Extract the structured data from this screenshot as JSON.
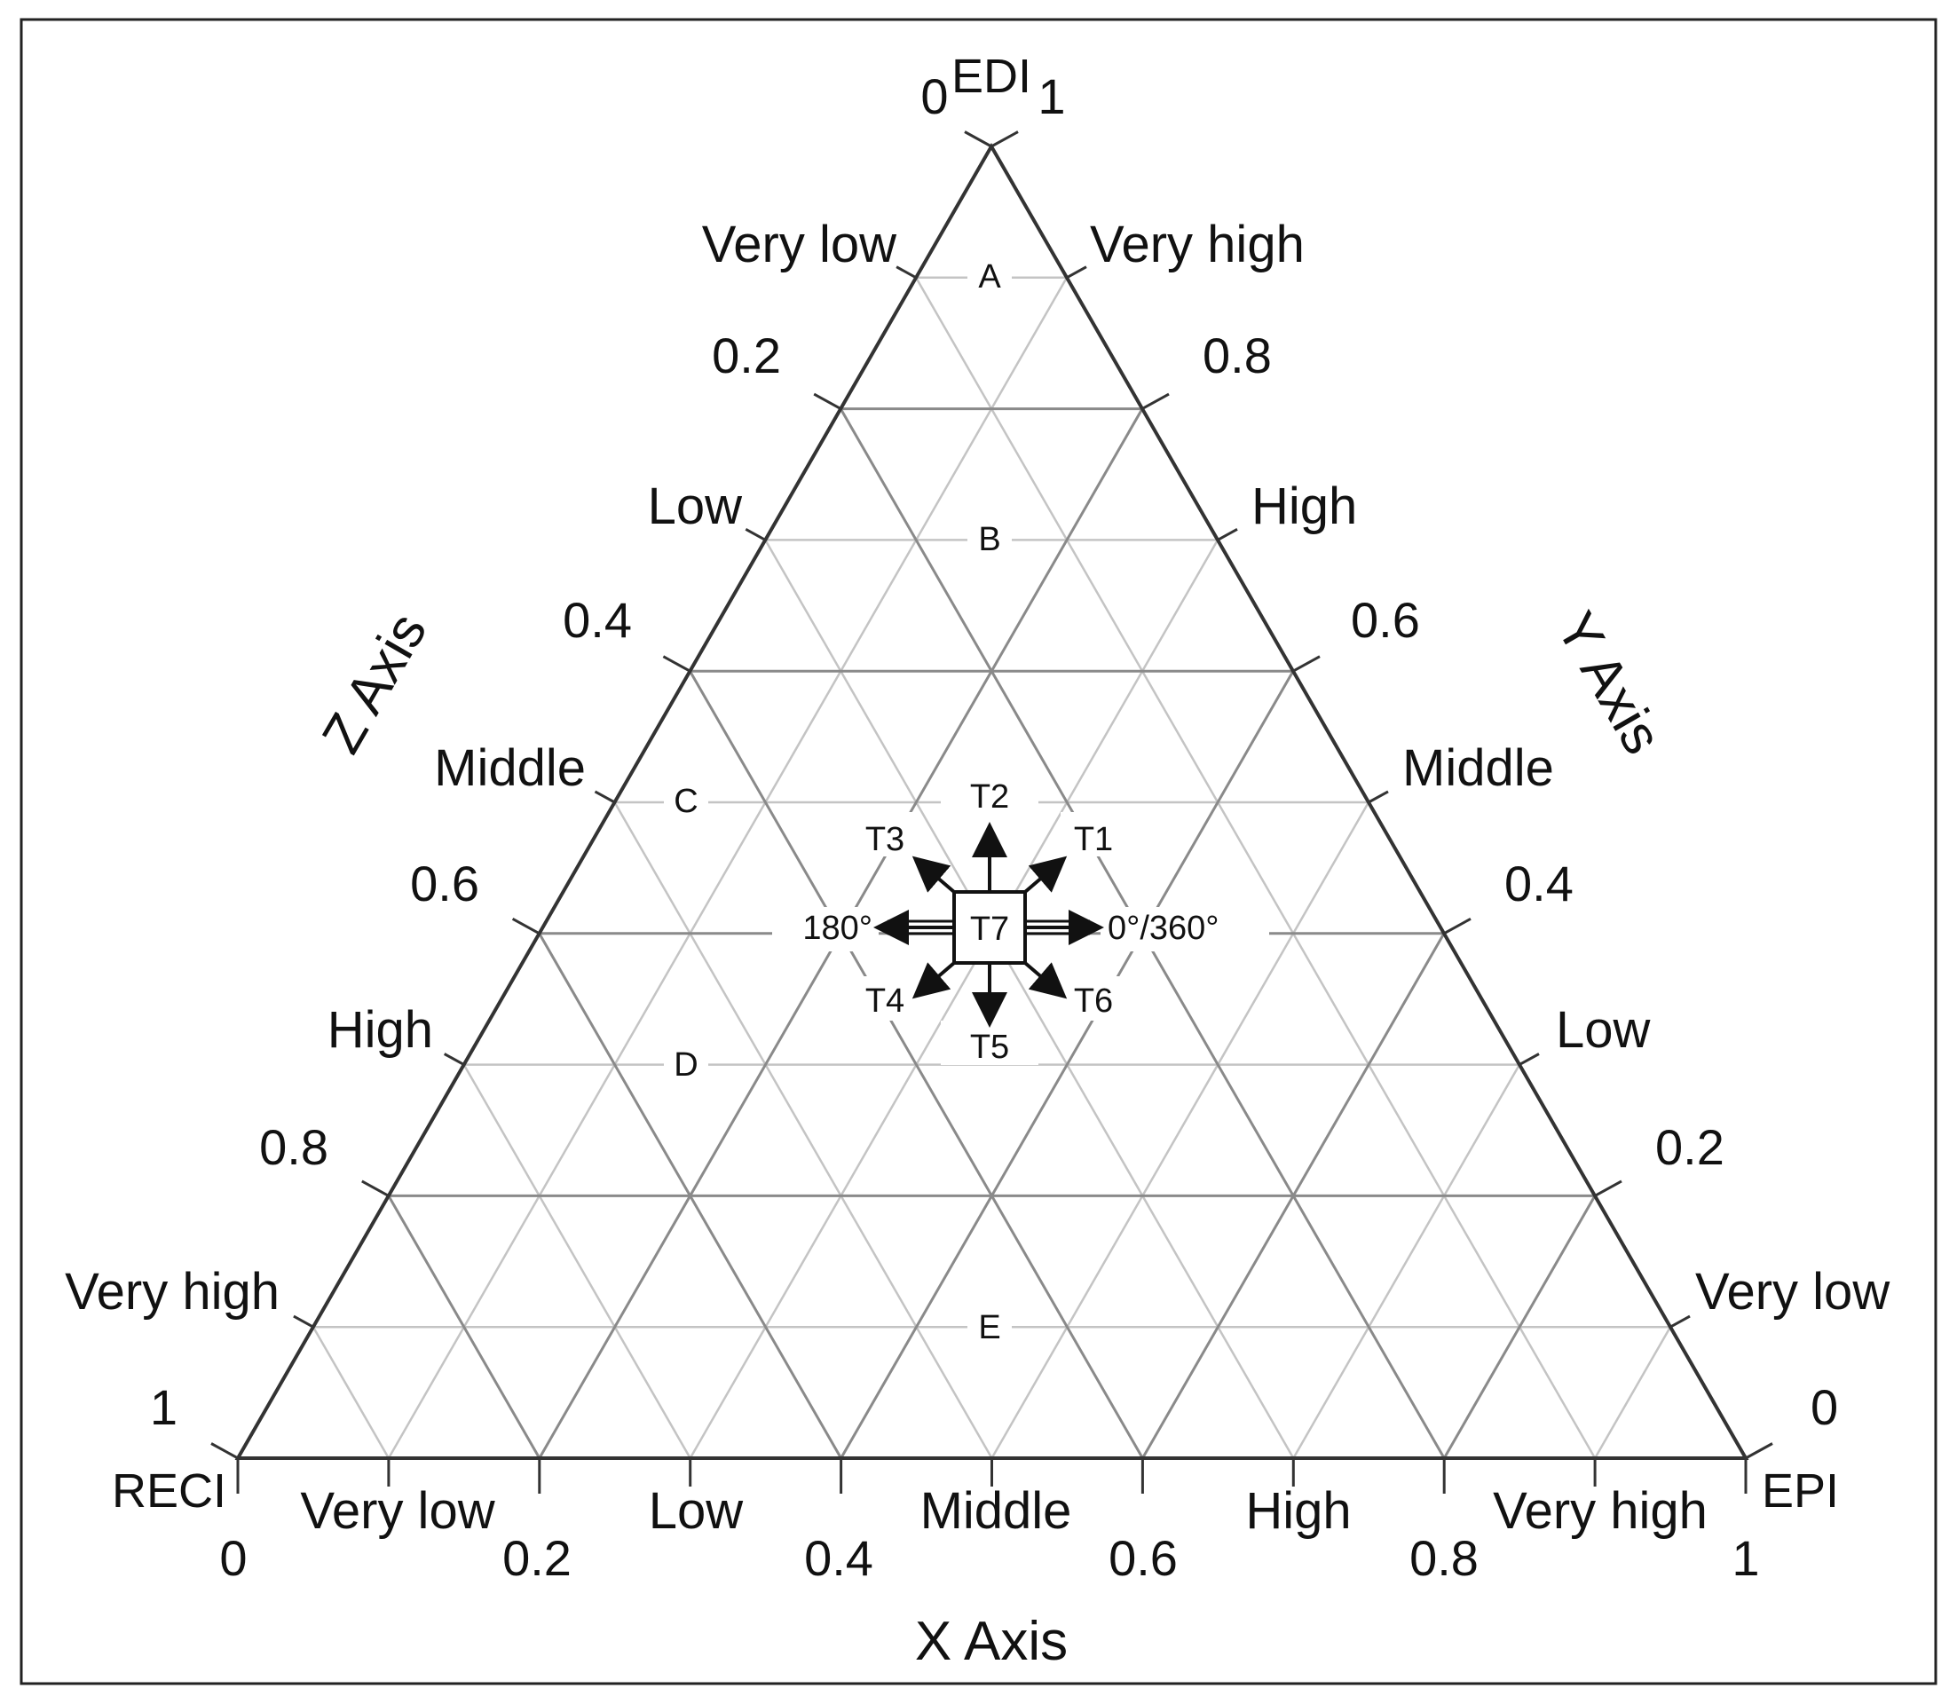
{
  "corners": {
    "top": "EDI",
    "left": "RECI",
    "right": "EPI"
  },
  "axes": {
    "x": {
      "title": "X Axis",
      "ticks": [
        "0",
        "0.2",
        "0.4",
        "0.6",
        "0.8",
        "1"
      ],
      "classes": [
        "Very low",
        "Low",
        "Middle",
        "High",
        "Very high"
      ]
    },
    "y": {
      "title": "Y Axis",
      "ticks": [
        "1",
        "0.8",
        "0.6",
        "0.4",
        "0.2",
        "0"
      ],
      "classes": [
        "Very high",
        "High",
        "Middle",
        "Low",
        "Very low"
      ]
    },
    "z": {
      "title": "Z Axis",
      "ticks": [
        "0",
        "0.2",
        "0.4",
        "0.6",
        "0.8",
        "1"
      ],
      "classes": [
        "Very low",
        "Low",
        "Middle",
        "High",
        "Very high"
      ]
    }
  },
  "zones": [
    "A",
    "B",
    "C",
    "D",
    "E"
  ],
  "directions": {
    "center": "T7",
    "up": "T2",
    "up_right": "T1",
    "up_left": "T3",
    "down_left": "T4",
    "down": "T5",
    "down_right": "T6",
    "left_angle": "180°",
    "right_angle": "0°/360°"
  },
  "colors": {
    "frame": "#222222",
    "grid_major": "#8a8a8a",
    "grid_minor": "#c4c4c4",
    "text": "#111111"
  }
}
